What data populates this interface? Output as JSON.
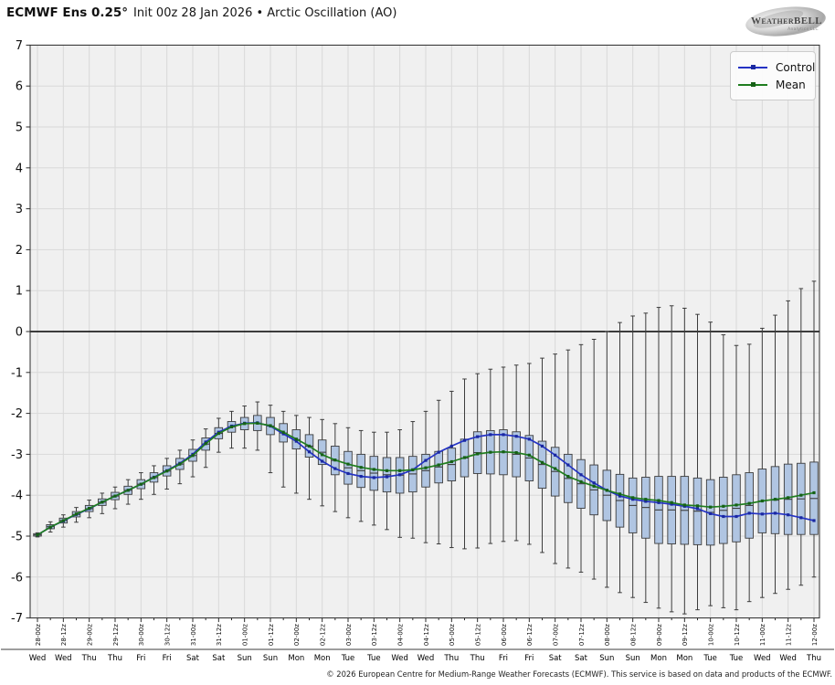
{
  "title": {
    "bold": "ECMWF Ens 0.25°",
    "rest": "Init 00z 28 Jan 2026 • Arctic Oscillation (AO)"
  },
  "logo": {
    "line1": "WeatherBELL",
    "line2": "Analytics LLC"
  },
  "legend": {
    "items": [
      {
        "label": "Control",
        "color": "#2433c4",
        "marker_color": "#1a28a0"
      },
      {
        "label": "Mean",
        "color": "#1f7d1f",
        "marker_color": "#166016"
      }
    ]
  },
  "footer": {
    "copyright": "© 2026 European Centre for Medium-Range Weather Forecasts (ECMWF). This service is based on data and products of the ECMWF."
  },
  "colors": {
    "plot_background": "#f0f0f0",
    "gridline": "#d9d9d9",
    "spine": "#2b2b2b",
    "zero_line": "#000000",
    "box_fill": "#b0c5e2",
    "box_stroke": "#3c3c3c",
    "whisker": "#3c3c3c",
    "tick_label": "#111111"
  },
  "chart_data": {
    "type": "boxplot+line",
    "title": "ECMWF Ens 0.25° Init 00z 28 Jan 2026 • Arctic Oscillation (AO)",
    "xlabel": "",
    "ylabel": "",
    "ylim": [
      -7,
      7
    ],
    "grid": true,
    "zero_line": true,
    "legend_position": "upper right",
    "x_step_hours": 6,
    "yticks": [
      7,
      6,
      5,
      4,
      3,
      2,
      1,
      0,
      -1,
      -2,
      -3,
      -4,
      -5,
      -6,
      -7
    ],
    "x_tick_labels": [
      "28-00z",
      "28-12z",
      "29-00z",
      "29-12z",
      "30-00z",
      "30-12z",
      "31-00z",
      "31-12z",
      "01-00z",
      "01-12z",
      "02-00z",
      "02-12z",
      "03-00z",
      "03-12z",
      "04-00z",
      "04-12z",
      "05-00z",
      "05-12z",
      "06-00z",
      "06-12z",
      "07-00z",
      "07-12z",
      "08-00z",
      "08-12z",
      "09-00z",
      "09-12z",
      "10-00z",
      "10-12z",
      "11-00z",
      "11-12z",
      "12-00z"
    ],
    "day_labels": [
      "Wed",
      "Wed",
      "Thu",
      "Thu",
      "Fri",
      "Fri",
      "Sat",
      "Sat",
      "Sun",
      "Sun",
      "Mon",
      "Mon",
      "Tue",
      "Tue",
      "Wed",
      "Wed",
      "Thu",
      "Thu",
      "Fri",
      "Fri",
      "Sat",
      "Sat",
      "Sun",
      "Sun",
      "Mon",
      "Mon",
      "Tue",
      "Tue",
      "Wed",
      "Wed",
      "Thu"
    ],
    "series": [
      {
        "name": "Control",
        "color": "#2433c4",
        "marker_color": "#1a28a0",
        "values": [
          -4.97,
          -4.78,
          -4.63,
          -4.47,
          -4.33,
          -4.17,
          -4.02,
          -3.88,
          -3.73,
          -3.56,
          -3.4,
          -3.22,
          -3.0,
          -2.7,
          -2.46,
          -2.31,
          -2.24,
          -2.23,
          -2.31,
          -2.5,
          -2.68,
          -2.94,
          -3.17,
          -3.35,
          -3.47,
          -3.54,
          -3.57,
          -3.55,
          -3.5,
          -3.38,
          -3.15,
          -2.95,
          -2.8,
          -2.66,
          -2.57,
          -2.52,
          -2.52,
          -2.56,
          -2.63,
          -2.8,
          -3.02,
          -3.26,
          -3.5,
          -3.7,
          -3.88,
          -4.02,
          -4.1,
          -4.15,
          -4.18,
          -4.22,
          -4.27,
          -4.33,
          -4.45,
          -4.52,
          -4.52,
          -4.44,
          -4.46,
          -4.44,
          -4.48,
          -4.55,
          -4.62
        ]
      },
      {
        "name": "Mean",
        "color": "#1f7d1f",
        "marker_color": "#166016",
        "values": [
          -4.97,
          -4.78,
          -4.62,
          -4.46,
          -4.32,
          -4.17,
          -4.02,
          -3.88,
          -3.73,
          -3.57,
          -3.41,
          -3.24,
          -3.03,
          -2.74,
          -2.49,
          -2.33,
          -2.25,
          -2.24,
          -2.3,
          -2.46,
          -2.63,
          -2.8,
          -3.01,
          -3.14,
          -3.24,
          -3.32,
          -3.37,
          -3.4,
          -3.4,
          -3.38,
          -3.33,
          -3.26,
          -3.18,
          -3.08,
          -2.99,
          -2.95,
          -2.94,
          -2.96,
          -3.02,
          -3.2,
          -3.35,
          -3.54,
          -3.67,
          -3.78,
          -3.88,
          -3.97,
          -4.06,
          -4.1,
          -4.13,
          -4.18,
          -4.24,
          -4.26,
          -4.29,
          -4.27,
          -4.24,
          -4.2,
          -4.14,
          -4.1,
          -4.06,
          -4.0,
          -3.94
        ]
      }
    ],
    "box": {
      "fill": "#b0c5e2",
      "q3": [
        -4.94,
        -4.72,
        -4.56,
        -4.4,
        -4.25,
        -4.09,
        -3.93,
        -3.78,
        -3.62,
        -3.45,
        -3.28,
        -3.1,
        -2.88,
        -2.6,
        -2.35,
        -2.2,
        -2.1,
        -2.05,
        -2.1,
        -2.25,
        -2.4,
        -2.52,
        -2.65,
        -2.8,
        -2.93,
        -3.0,
        -3.05,
        -3.08,
        -3.08,
        -3.05,
        -3.0,
        -2.93,
        -2.85,
        -2.63,
        -2.45,
        -2.42,
        -2.4,
        -2.45,
        -2.54,
        -2.68,
        -2.83,
        -3.0,
        -3.13,
        -3.26,
        -3.39,
        -3.49,
        -3.58,
        -3.56,
        -3.54,
        -3.54,
        -3.54,
        -3.58,
        -3.62,
        -3.56,
        -3.5,
        -3.45,
        -3.36,
        -3.3,
        -3.24,
        -3.22,
        -3.19
      ],
      "q1": [
        -5.0,
        -4.82,
        -4.68,
        -4.53,
        -4.4,
        -4.25,
        -4.11,
        -3.98,
        -3.84,
        -3.68,
        -3.53,
        -3.37,
        -3.17,
        -2.9,
        -2.62,
        -2.46,
        -2.4,
        -2.42,
        -2.52,
        -2.7,
        -2.87,
        -3.07,
        -3.25,
        -3.5,
        -3.73,
        -3.81,
        -3.88,
        -3.92,
        -3.95,
        -3.92,
        -3.8,
        -3.7,
        -3.65,
        -3.55,
        -3.47,
        -3.48,
        -3.5,
        -3.55,
        -3.65,
        -3.83,
        -4.02,
        -4.18,
        -4.32,
        -4.48,
        -4.62,
        -4.78,
        -4.92,
        -5.05,
        -5.18,
        -5.19,
        -5.2,
        -5.21,
        -5.22,
        -5.18,
        -5.14,
        -5.05,
        -4.92,
        -4.94,
        -4.96,
        -4.96,
        -4.96
      ],
      "median": [
        -4.97,
        -4.77,
        -4.62,
        -4.47,
        -4.33,
        -4.17,
        -4.02,
        -3.88,
        -3.73,
        -3.57,
        -3.41,
        -3.24,
        -3.03,
        -2.75,
        -2.49,
        -2.33,
        -2.25,
        -2.24,
        -2.31,
        -2.48,
        -2.64,
        -2.8,
        -2.95,
        -3.15,
        -3.33,
        -3.4,
        -3.46,
        -3.5,
        -3.51,
        -3.48,
        -3.4,
        -3.31,
        -3.25,
        -3.09,
        -2.96,
        -2.95,
        -2.95,
        -3.0,
        -3.09,
        -3.25,
        -3.42,
        -3.59,
        -3.72,
        -3.87,
        -4.0,
        -4.13,
        -4.25,
        -4.3,
        -4.36,
        -4.36,
        -4.37,
        -4.39,
        -4.42,
        -4.37,
        -4.32,
        -4.25,
        -4.14,
        -4.12,
        -4.1,
        -4.09,
        -4.08
      ],
      "whisker_high": [
        -4.92,
        -4.65,
        -4.48,
        -4.3,
        -4.12,
        -3.95,
        -3.8,
        -3.62,
        -3.45,
        -3.28,
        -3.1,
        -2.9,
        -2.65,
        -2.38,
        -2.12,
        -1.95,
        -1.82,
        -1.72,
        -1.8,
        -1.95,
        -2.05,
        -2.1,
        -2.15,
        -2.25,
        -2.35,
        -2.42,
        -2.46,
        -2.46,
        -2.4,
        -2.2,
        -1.95,
        -1.68,
        -1.46,
        -1.16,
        -1.03,
        -0.92,
        -0.87,
        -0.82,
        -0.78,
        -0.65,
        -0.55,
        -0.45,
        -0.32,
        -0.19,
        0.0,
        0.22,
        0.38,
        0.45,
        0.59,
        0.63,
        0.57,
        0.42,
        0.23,
        -0.08,
        -0.34,
        -0.31,
        0.08,
        0.4,
        0.75,
        1.05,
        1.23
      ],
      "whisker_low": [
        -5.02,
        -4.9,
        -4.78,
        -4.66,
        -4.55,
        -4.45,
        -4.33,
        -4.22,
        -4.1,
        -3.98,
        -3.85,
        -3.72,
        -3.55,
        -3.32,
        -2.95,
        -2.85,
        -2.85,
        -2.9,
        -3.45,
        -3.8,
        -3.95,
        -4.1,
        -4.26,
        -4.4,
        -4.55,
        -4.64,
        -4.73,
        -4.84,
        -5.03,
        -5.05,
        -5.16,
        -5.19,
        -5.28,
        -5.31,
        -5.29,
        -5.18,
        -5.13,
        -5.11,
        -5.2,
        -5.4,
        -5.67,
        -5.78,
        -5.88,
        -6.05,
        -6.25,
        -6.38,
        -6.5,
        -6.62,
        -6.76,
        -6.85,
        -6.9,
        -6.8,
        -6.7,
        -6.75,
        -6.8,
        -6.6,
        -6.5,
        -6.4,
        -6.3,
        -6.2,
        -6.0
      ]
    }
  }
}
